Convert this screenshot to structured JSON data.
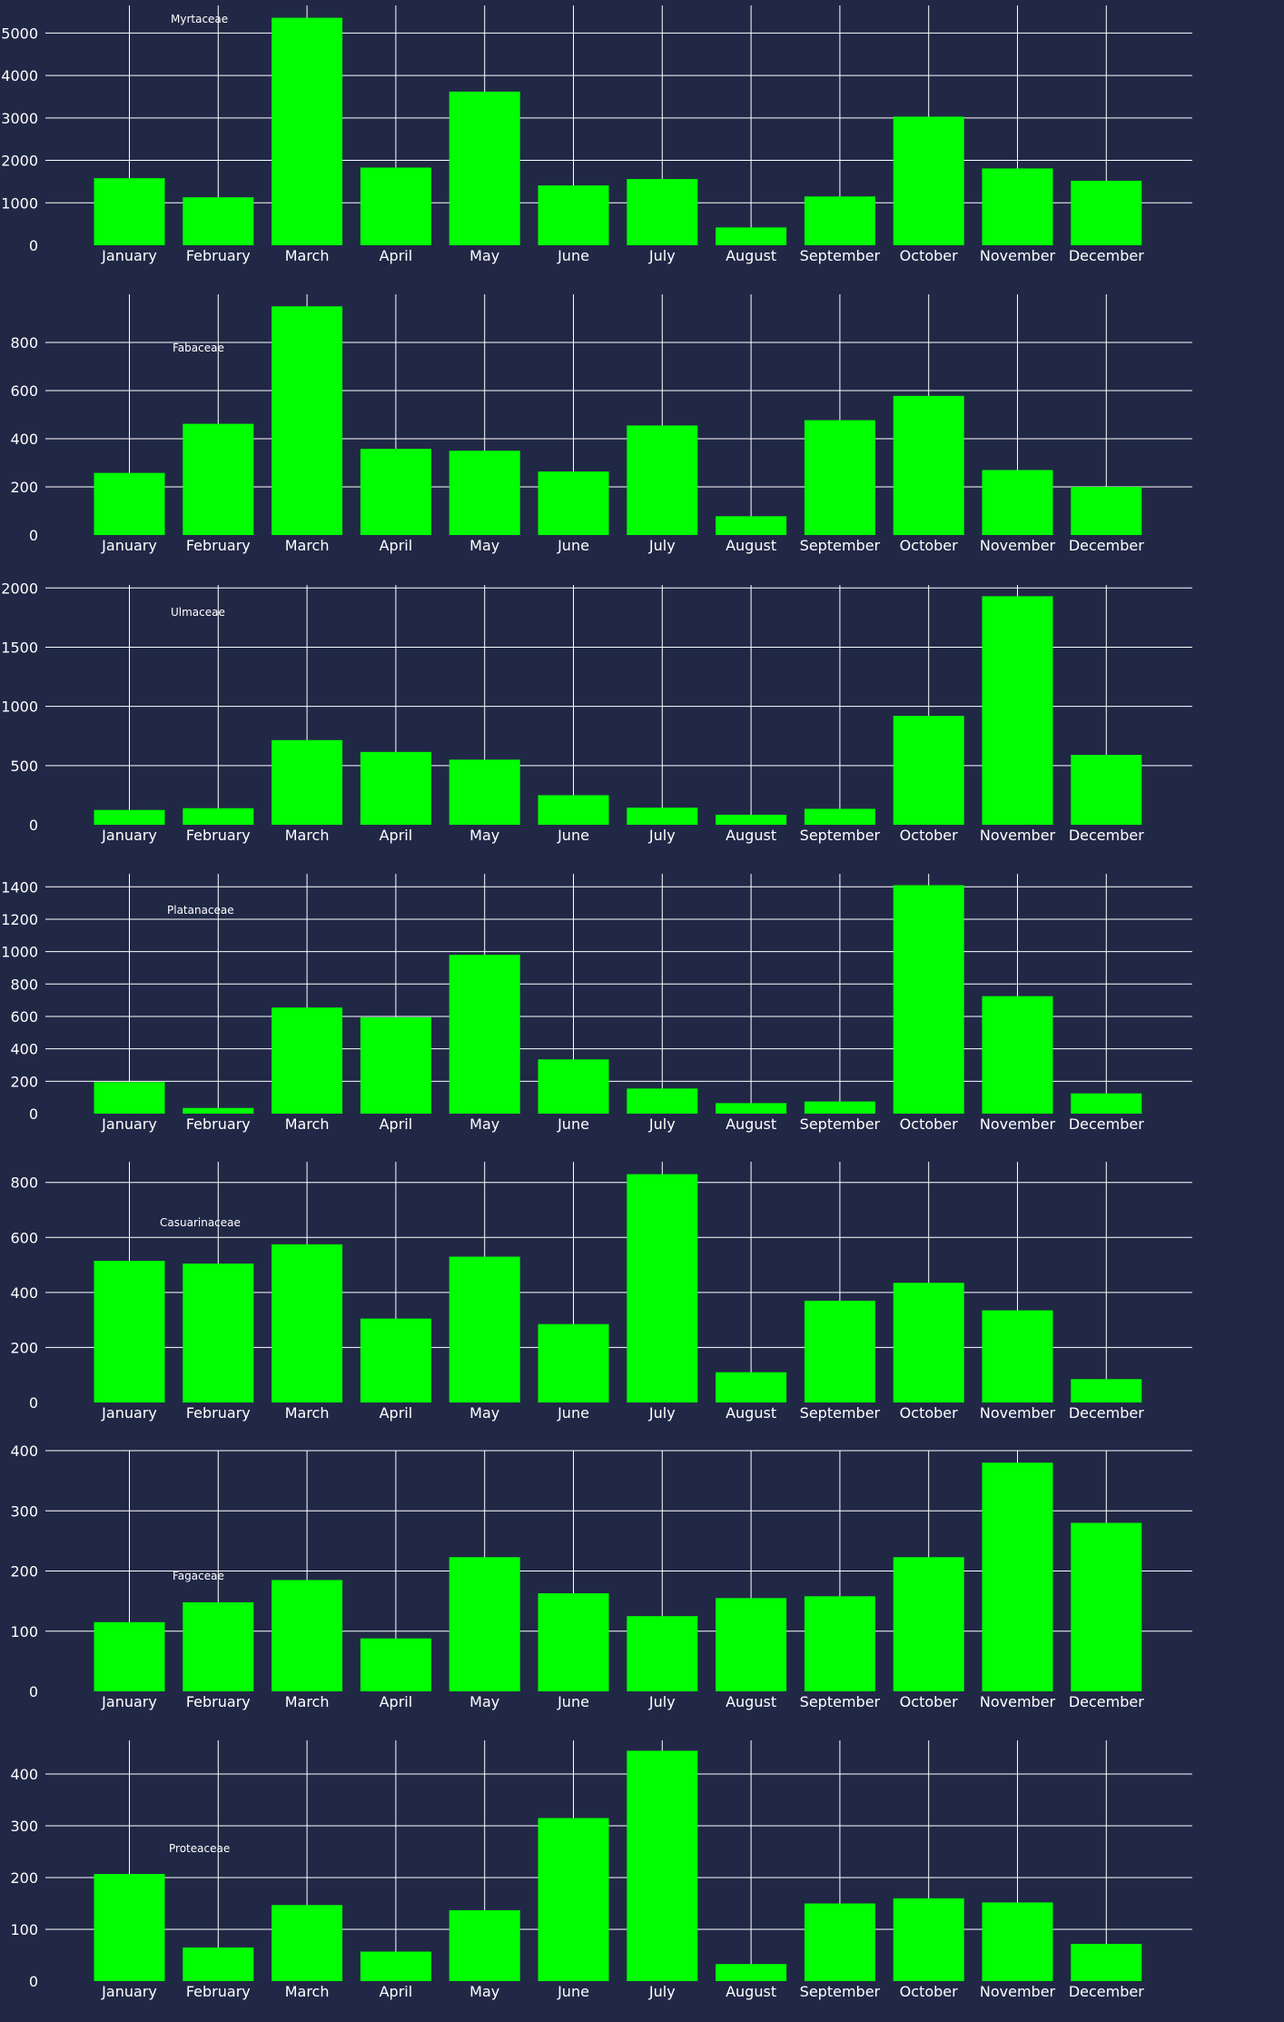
{
  "chart_data": [
    {
      "type": "bar",
      "label": "Myrtaceae",
      "categories": [
        "January",
        "February",
        "March",
        "April",
        "May",
        "June",
        "July",
        "August",
        "September",
        "October",
        "November",
        "December"
      ],
      "values": [
        1580,
        1130,
        5360,
        1830,
        3620,
        1410,
        1560,
        420,
        1150,
        3030,
        1810,
        1520
      ],
      "ylim": [
        0,
        5650
      ],
      "yticks": [
        0,
        1000,
        2000,
        3000,
        4000,
        5000
      ],
      "bar_color": "#00ff00",
      "grid": true
    },
    {
      "type": "bar",
      "label": "Fabaceae",
      "categories": [
        "January",
        "February",
        "March",
        "April",
        "May",
        "June",
        "July",
        "August",
        "September",
        "October",
        "November",
        "December"
      ],
      "values": [
        258,
        462,
        950,
        358,
        350,
        264,
        455,
        78,
        477,
        578,
        270,
        200
      ],
      "ylim": [
        0,
        1000
      ],
      "yticks": [
        0,
        200,
        400,
        600,
        800
      ],
      "bar_color": "#00ff00",
      "grid": true
    },
    {
      "type": "bar",
      "label": "Ulmaceae",
      "categories": [
        "January",
        "February",
        "March",
        "April",
        "May",
        "June",
        "July",
        "August",
        "September",
        "October",
        "November",
        "December"
      ],
      "values": [
        125,
        140,
        715,
        615,
        550,
        250,
        145,
        85,
        135,
        920,
        1930,
        590
      ],
      "ylim": [
        0,
        2025
      ],
      "yticks": [
        0,
        500,
        1000,
        1500,
        2000
      ],
      "bar_color": "#00ff00",
      "grid": true
    },
    {
      "type": "bar",
      "label": "Platanaceae",
      "categories": [
        "January",
        "February",
        "March",
        "April",
        "May",
        "June",
        "July",
        "August",
        "September",
        "October",
        "November",
        "December"
      ],
      "values": [
        195,
        35,
        655,
        595,
        980,
        335,
        155,
        65,
        75,
        1410,
        725,
        125
      ],
      "ylim": [
        0,
        1480
      ],
      "yticks": [
        0,
        200,
        400,
        600,
        800,
        1000,
        1200,
        1400
      ],
      "bar_color": "#00ff00",
      "grid": true
    },
    {
      "type": "bar",
      "label": "Casuarinaceae",
      "categories": [
        "January",
        "February",
        "March",
        "April",
        "May",
        "June",
        "July",
        "August",
        "September",
        "October",
        "November",
        "December"
      ],
      "values": [
        515,
        505,
        575,
        305,
        530,
        285,
        830,
        110,
        370,
        435,
        335,
        85
      ],
      "ylim": [
        0,
        875
      ],
      "yticks": [
        0,
        200,
        400,
        600,
        800
      ],
      "bar_color": "#00ff00",
      "grid": true
    },
    {
      "type": "bar",
      "label": "Fagaceae",
      "categories": [
        "January",
        "February",
        "March",
        "April",
        "May",
        "June",
        "July",
        "August",
        "September",
        "October",
        "November",
        "December"
      ],
      "values": [
        115,
        148,
        185,
        88,
        223,
        163,
        125,
        155,
        158,
        223,
        380,
        280
      ],
      "ylim": [
        0,
        400
      ],
      "yticks": [
        0,
        100,
        200,
        300,
        400
      ],
      "bar_color": "#00ff00",
      "grid": true
    },
    {
      "type": "bar",
      "label": "Proteaceae",
      "categories": [
        "January",
        "February",
        "March",
        "April",
        "May",
        "June",
        "July",
        "August",
        "September",
        "October",
        "November",
        "December"
      ],
      "values": [
        207,
        65,
        147,
        57,
        137,
        315,
        445,
        33,
        150,
        160,
        152,
        72
      ],
      "ylim": [
        0,
        465
      ],
      "yticks": [
        0,
        100,
        200,
        300,
        400
      ],
      "bar_color": "#00ff00",
      "grid": true
    }
  ]
}
